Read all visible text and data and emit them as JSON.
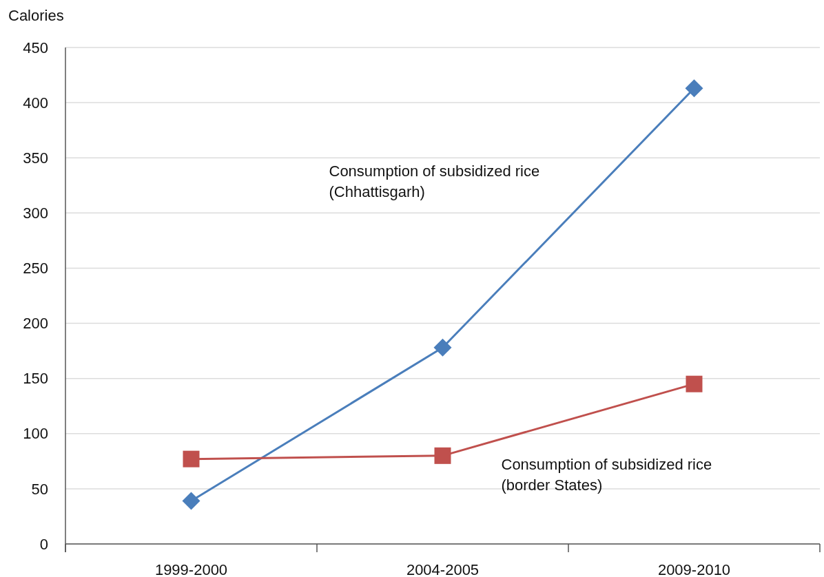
{
  "chart_data": {
    "type": "line",
    "ylabel": "Calories",
    "categories": [
      "1999-2000",
      "2004-2005",
      "2009-2010"
    ],
    "series": [
      {
        "name": "Consumption of subsidized rice (Chhattisgarh)",
        "color": "#4a7ebb",
        "marker": "diamond",
        "values": [
          39,
          178,
          413
        ]
      },
      {
        "name": "Consumption of subsidized rice (border States)",
        "color": "#c0504d",
        "marker": "square",
        "values": [
          77,
          80,
          145
        ]
      }
    ],
    "ylim": [
      0,
      450
    ],
    "yticks": [
      0,
      50,
      100,
      150,
      200,
      250,
      300,
      350,
      400,
      450
    ],
    "grid": "y"
  }
}
